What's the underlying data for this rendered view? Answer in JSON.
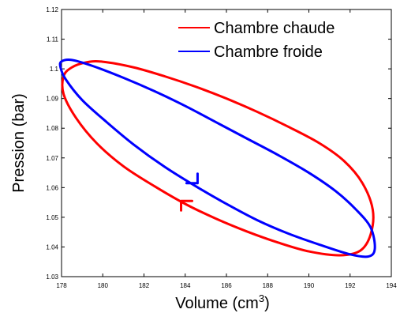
{
  "chart_data": {
    "type": "line",
    "xlabel": "Volume (cm",
    "xlabel_sup": "3",
    "xlabel_close": ")",
    "ylabel": "Pression (bar)",
    "xlim": [
      178,
      194
    ],
    "ylim": [
      1.03,
      1.12
    ],
    "x_ticks": [
      178,
      180,
      182,
      184,
      186,
      188,
      190,
      192,
      194
    ],
    "y_ticks": [
      1.03,
      1.04,
      1.05,
      1.06,
      1.07,
      1.08,
      1.09,
      1.1,
      1.11,
      1.12
    ],
    "legend_position": "top-right",
    "series": [
      {
        "name": "Chambre chaude",
        "color": "#ff0000",
        "x": [
          180.0,
          181.5,
          183.0,
          184.5,
          186.0,
          187.5,
          189.0,
          190.5,
          191.7,
          192.6,
          193.1,
          193.0,
          192.5,
          191.5,
          190.0,
          188.5,
          187.0,
          185.5,
          184.0,
          182.5,
          181.0,
          179.7,
          178.7,
          178.1,
          178.1,
          178.5,
          179.2,
          180.0
        ],
        "y": [
          1.1024,
          1.1005,
          1.0975,
          1.094,
          1.09,
          1.0855,
          1.0805,
          1.075,
          1.069,
          1.0615,
          1.0525,
          1.0443,
          1.0388,
          1.0372,
          1.0385,
          1.0415,
          1.0452,
          1.0495,
          1.0545,
          1.0605,
          1.0672,
          1.075,
          1.0835,
          1.0915,
          1.0975,
          1.1005,
          1.1022,
          1.1024
        ]
      },
      {
        "name": "Chambre froide",
        "color": "#0000ff",
        "x": [
          178.5,
          179.5,
          181.0,
          182.5,
          184.0,
          185.5,
          187.0,
          188.5,
          190.0,
          191.3,
          192.3,
          193.0,
          193.2,
          192.9,
          192.0,
          190.5,
          189.0,
          187.5,
          186.0,
          184.5,
          183.0,
          181.5,
          180.2,
          179.0,
          178.2,
          177.95,
          178.0,
          178.5
        ],
        "y": [
          1.103,
          1.101,
          1.097,
          1.0925,
          1.0875,
          1.082,
          1.0765,
          1.071,
          1.065,
          1.0588,
          1.0525,
          1.0465,
          1.0395,
          1.0368,
          1.0375,
          1.0408,
          1.0445,
          1.049,
          1.0545,
          1.0605,
          1.067,
          1.0745,
          1.082,
          1.0895,
          1.0965,
          1.1005,
          1.1025,
          1.103
        ]
      }
    ]
  }
}
